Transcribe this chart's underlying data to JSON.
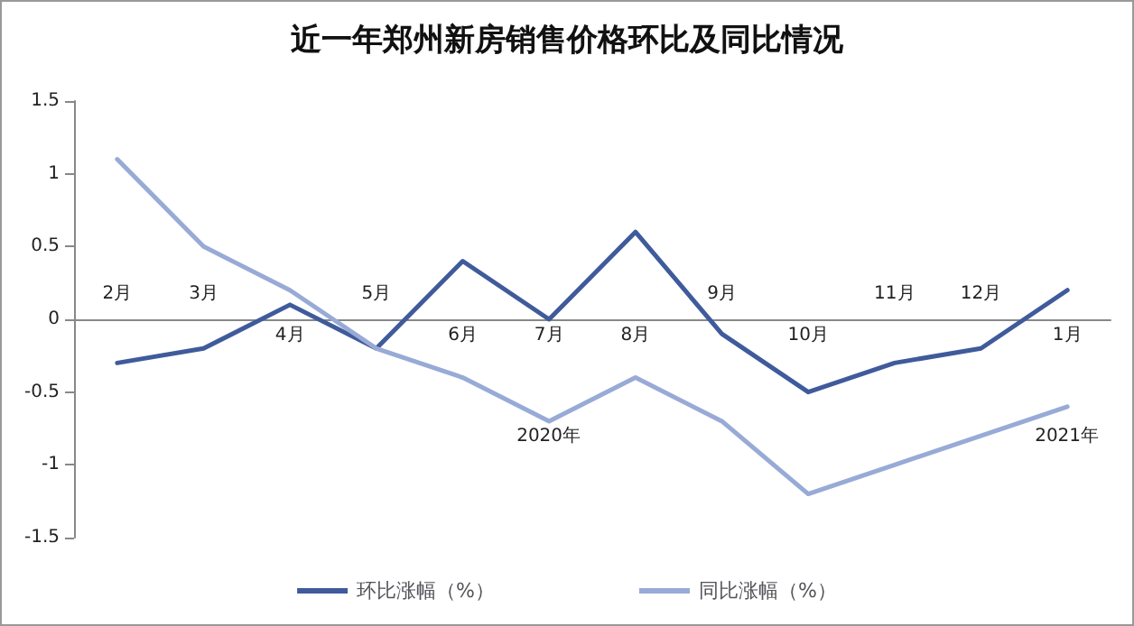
{
  "chart_data": {
    "type": "line",
    "title": "近一年郑州新房销售价格环比及同比情况",
    "categories": [
      "2月",
      "3月",
      "4月",
      "5月",
      "6月",
      "7月",
      "8月",
      "9月",
      "10月",
      "11月",
      "12月",
      "1月"
    ],
    "series": [
      {
        "name": "环比涨幅（%）",
        "color": "#3f5b9b",
        "values": [
          -0.3,
          -0.2,
          0.1,
          -0.2,
          0.4,
          0.0,
          0.6,
          -0.1,
          -0.5,
          -0.3,
          -0.2,
          0.2
        ]
      },
      {
        "name": "同比涨幅（%）",
        "color": "#98aad6",
        "values": [
          1.1,
          0.5,
          0.2,
          -0.2,
          -0.4,
          -0.7,
          -0.4,
          -0.7,
          -1.2,
          -1.0,
          -0.8,
          -0.6
        ]
      }
    ],
    "annotations": [
      "2020年",
      "2021年"
    ],
    "ylim": [
      -1.5,
      1.5
    ],
    "yticks": [
      -1.5,
      -1,
      -0.5,
      0,
      0.5,
      1,
      1.5
    ],
    "grid": false,
    "legend": "bottom",
    "marker": "none",
    "line_style": "solid"
  }
}
